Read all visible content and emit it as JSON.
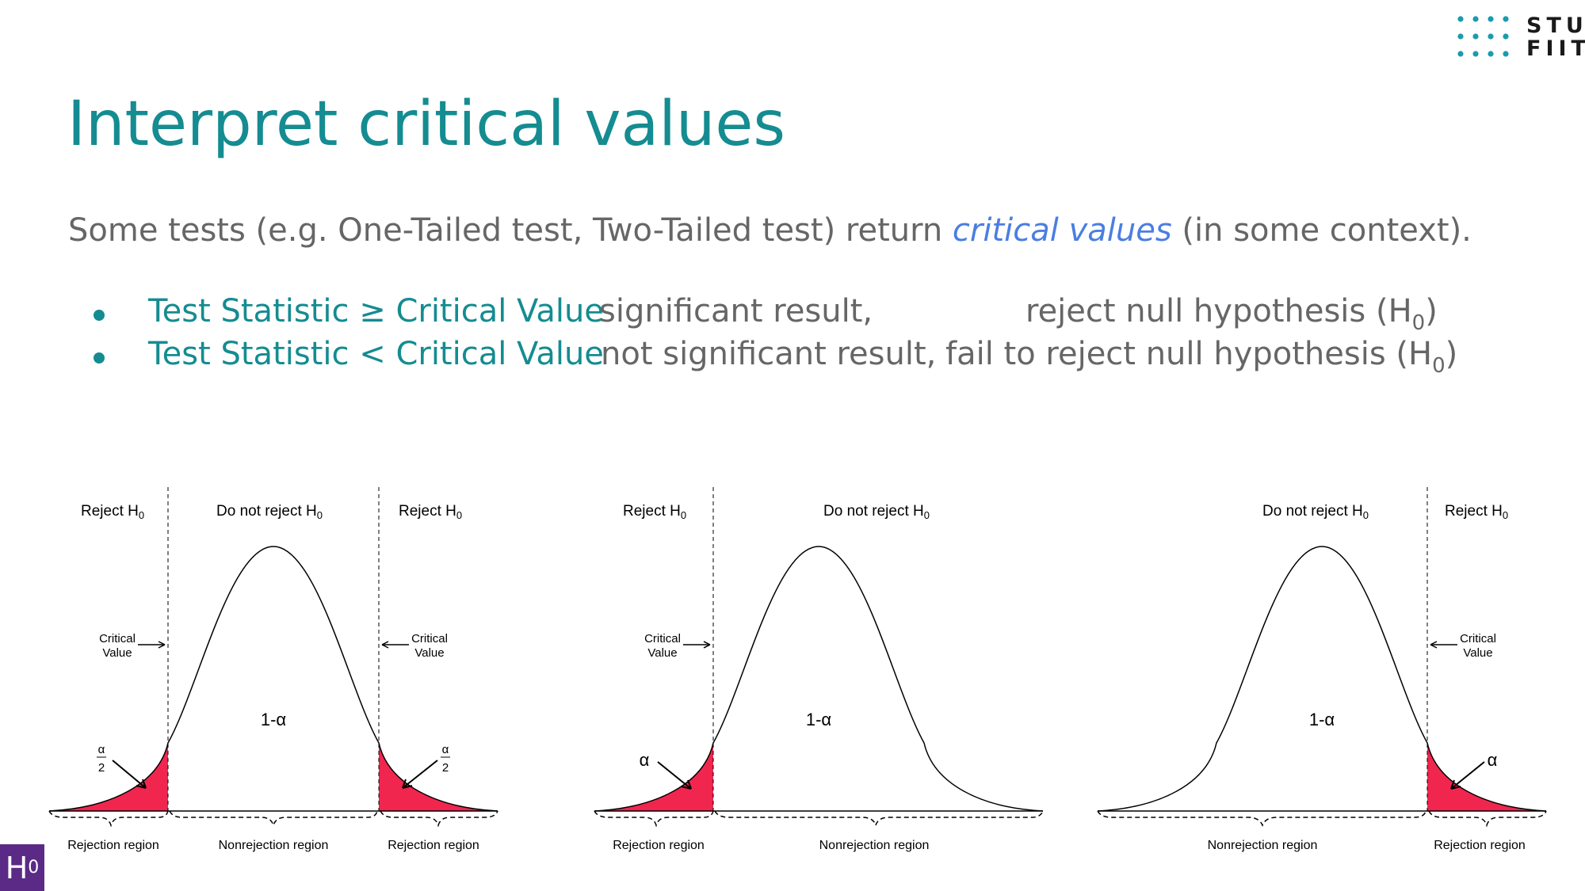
{
  "logo": {
    "line1": "STU",
    "line2": "FIIT"
  },
  "title": "Interpret critical values",
  "intro": {
    "before": "Some tests (e.g. One-Tailed test, Two-Tailed test) return ",
    "emphasis": "critical values",
    "after": " (in some context)."
  },
  "bullets": [
    {
      "condition": "Test Statistic ≥ Critical Value",
      "result": "significant result,",
      "action": "reject null hypothesis (H",
      "sub": "0",
      "close": ")"
    },
    {
      "condition": "Test Statistic < Critical Value",
      "result": "not significant result,",
      "action": "fail to reject null hypothesis (H",
      "sub": "0",
      "close": ")"
    }
  ],
  "diagram_labels": {
    "reject": "Reject H",
    "do_not_reject": "Do not reject H",
    "sub": "0",
    "critical": "Critical",
    "value": "Value",
    "one_minus_alpha": "1-α",
    "alpha": "α",
    "two": "2",
    "rejection_region": "Rejection region",
    "nonrejection_region": "Nonrejection region"
  },
  "badge": {
    "letter": "H",
    "sub": "0"
  },
  "colors": {
    "accent": "#148c91",
    "emphasis": "#4b7ee2",
    "tail": "#f0264e",
    "text": "#666666",
    "badge": "#5b2a86"
  }
}
